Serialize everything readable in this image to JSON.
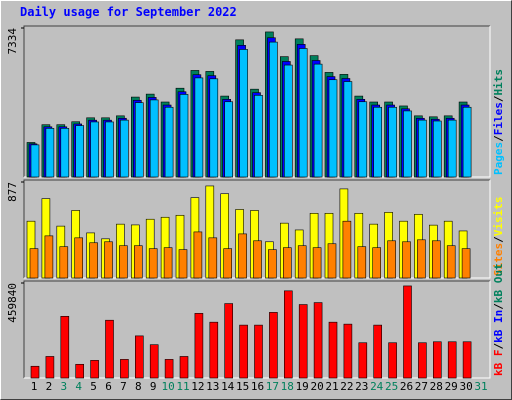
{
  "chart_data": [
    {
      "type": "bar",
      "title": "Daily usage for September 2022",
      "legend_separator": "/",
      "ylim": [
        0,
        7334
      ],
      "yticks": [
        7334
      ],
      "series": [
        {
          "name": "Hits",
          "color": "#00805c",
          "values": [
            1700,
            2574,
            2574,
            2720,
            2914,
            2914,
            3011,
            3934,
            4080,
            3691,
            4371,
            5245,
            5197,
            3983,
            6751,
            4323,
            7140,
            5925,
            6800,
            5974,
            5148,
            5051,
            3983,
            3691,
            3691,
            3497,
            3011,
            2963,
            3011,
            3691,
            null
          ]
        },
        {
          "name": "Files",
          "color": "#0000ff",
          "values": [
            1632,
            2471,
            2471,
            2611,
            2797,
            2797,
            2891,
            3777,
            3917,
            3543,
            4196,
            5035,
            4989,
            3824,
            6481,
            4150,
            6854,
            5688,
            6528,
            5735,
            4942,
            4849,
            3824,
            3543,
            3543,
            3357,
            2891,
            2844,
            2891,
            3543,
            null
          ]
        },
        {
          "name": "Pages",
          "color": "#00c0ff",
          "values": [
            1581,
            2394,
            2394,
            2530,
            2710,
            2710,
            2800,
            3659,
            3794,
            3433,
            4065,
            4878,
            4833,
            3704,
            6278,
            4020,
            6640,
            5510,
            6324,
            5556,
            4788,
            4697,
            3704,
            3433,
            3433,
            3252,
            2800,
            2756,
            2800,
            3433,
            null
          ]
        }
      ]
    },
    {
      "type": "bar",
      "legend_separator": "/",
      "ylim": [
        0,
        877
      ],
      "yticks": [
        877
      ],
      "series": [
        {
          "name": "Visits",
          "color": "#ffff00",
          "values": [
            519,
            725,
            474,
            617,
            412,
            358,
            492,
            485,
            537,
            555,
            573,
            734,
            841,
            770,
            626,
            617,
            331,
            501,
            439,
            591,
            591,
            814,
            591,
            492,
            600,
            519,
            582,
            483,
            519,
            430,
            null
          ]
        },
        {
          "name": "Sites",
          "color": "#ff8000",
          "values": [
            268,
            385,
            286,
            367,
            322,
            331,
            295,
            295,
            268,
            277,
            259,
            421,
            367,
            268,
            403,
            340,
            259,
            277,
            295,
            277,
            313,
            519,
            286,
            277,
            340,
            331,
            349,
            340,
            295,
            268,
            null
          ]
        }
      ]
    },
    {
      "type": "bar",
      "legend_separator": "/",
      "ylim": [
        0,
        459840
      ],
      "yticks": [
        459840
      ],
      "categories": [
        "1",
        "2",
        "3",
        "4",
        "5",
        "6",
        "7",
        "8",
        "9",
        "10",
        "11",
        "12",
        "13",
        "14",
        "15",
        "16",
        "17",
        "18",
        "19",
        "20",
        "21",
        "22",
        "23",
        "24",
        "25",
        "26",
        "27",
        "28",
        "29",
        "30",
        "31"
      ],
      "category_colors": [
        "#000000",
        "#000000",
        "#00805c",
        "#00805c",
        "#000000",
        "#000000",
        "#000000",
        "#000000",
        "#000000",
        "#00805c",
        "#00805c",
        "#000000",
        "#000000",
        "#000000",
        "#000000",
        "#000000",
        "#00805c",
        "#00805c",
        "#000000",
        "#000000",
        "#000000",
        "#000000",
        "#000000",
        "#00805c",
        "#00805c",
        "#000000",
        "#000000",
        "#000000",
        "#000000",
        "#000000",
        "#00805c"
      ],
      "series": [
        {
          "name": "kB Out",
          "color": "#00805c",
          "values": [
            0,
            0,
            0,
            0,
            0,
            0,
            0,
            0,
            0,
            0,
            0,
            0,
            0,
            0,
            0,
            0,
            0,
            0,
            0,
            0,
            0,
            0,
            0,
            0,
            0,
            0,
            0,
            0,
            0,
            0,
            null
          ]
        },
        {
          "name": "kB In",
          "color": "#0000ff",
          "values": [
            0,
            0,
            0,
            0,
            0,
            0,
            0,
            0,
            0,
            0,
            0,
            0,
            0,
            0,
            0,
            0,
            0,
            0,
            0,
            0,
            0,
            0,
            0,
            0,
            0,
            0,
            0,
            0,
            0,
            0,
            null
          ]
        },
        {
          "name": "kB F",
          "color": "#ff0000",
          "values": [
            56888,
            104294,
            298664,
            66368,
            85331,
            279703,
            90073,
            203851,
            161185,
            90073,
            104294,
            312886,
            270221,
            360296,
            255999,
            255999,
            317627,
            421929,
            355556,
            365036,
            270221,
            260740,
            170666,
            255999,
            170666,
            445622,
            170666,
            175407,
            175407,
            175407,
            null
          ]
        }
      ]
    }
  ]
}
